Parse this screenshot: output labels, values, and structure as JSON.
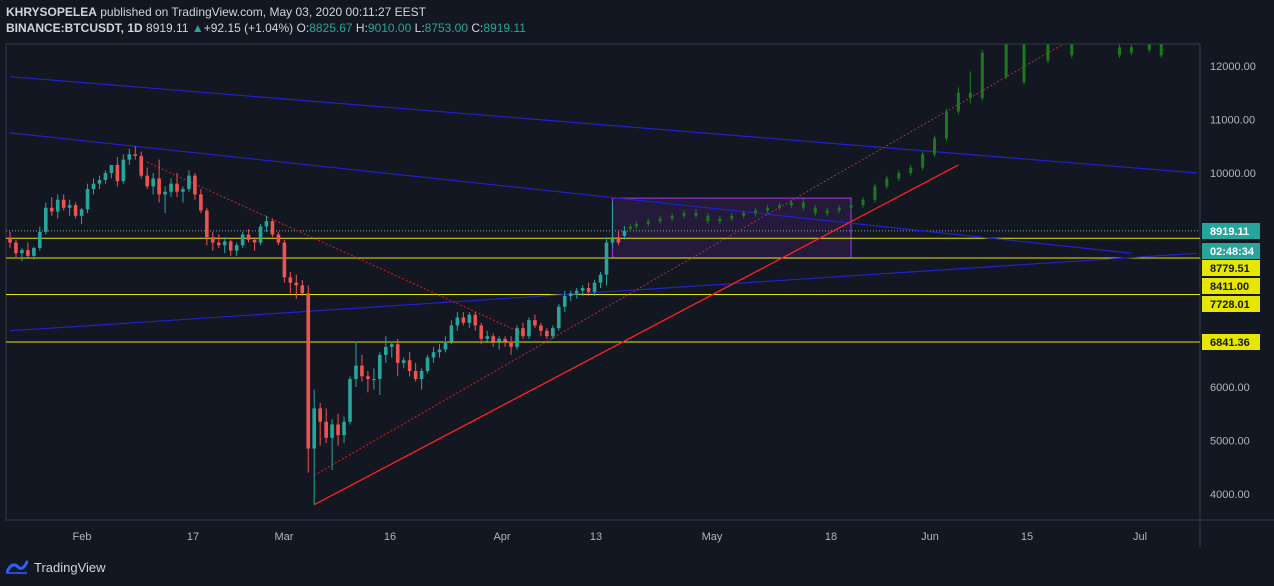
{
  "header": {
    "publisher": "KHRYSOPELEA",
    "published_text": "published on TradingView.com, May 03, 2020 00:11:27 EEST",
    "symbol": "BINANCE:BTCUSDT, 1D",
    "last": "8919.11",
    "change": "+92.15 (+1.04%)",
    "o_label": "O:",
    "o_value": "8825.67",
    "h_label": "H:",
    "h_value": "9010.00",
    "l_label": "L:",
    "l_value": "8753.00",
    "c_label": "C:",
    "c_value": "8919.11"
  },
  "footer": {
    "brand": "TradingView"
  },
  "colors": {
    "background": "#131722",
    "up": "#26a69a",
    "down": "#ef5350",
    "projection": "#1b7a1b",
    "channel": "#2222cc",
    "support_line": "#ff2222",
    "level_line": "#e6e600",
    "box": "#9b30d9"
  },
  "chart_data": {
    "type": "candlestick",
    "x_ticks": [
      "Feb",
      "17",
      "Mar",
      "16",
      "Apr",
      "13",
      "May",
      "18",
      "Jun",
      "15",
      "Jul"
    ],
    "y_ticks": [
      "12000.00",
      "11000.00",
      "10000.00",
      "6000.00",
      "5000.00",
      "4000.00"
    ],
    "ylim": [
      3500,
      12500
    ],
    "price_labels": [
      {
        "text": "8919.11",
        "price": 8919.11,
        "style": "last"
      },
      {
        "text": "02:48:34",
        "price": 8480,
        "style": "countdown"
      },
      {
        "text": "8779.51",
        "price": 8779.51,
        "style": "level"
      },
      {
        "text": "8411.00",
        "price": 8411,
        "style": "level"
      },
      {
        "text": "7728.01",
        "price": 7728.01,
        "style": "level"
      },
      {
        "text": "6841.36",
        "price": 6841.36,
        "style": "level"
      }
    ],
    "candles": [
      {
        "t": 0,
        "o": 8790,
        "h": 8900,
        "l": 8600,
        "c": 8700
      },
      {
        "t": 1,
        "o": 8700,
        "h": 8750,
        "l": 8400,
        "c": 8500
      },
      {
        "t": 2,
        "o": 8500,
        "h": 8600,
        "l": 8350,
        "c": 8560
      },
      {
        "t": 3,
        "o": 8560,
        "h": 8700,
        "l": 8420,
        "c": 8450
      },
      {
        "t": 4,
        "o": 8450,
        "h": 8620,
        "l": 8380,
        "c": 8600
      },
      {
        "t": 5,
        "o": 8600,
        "h": 9000,
        "l": 8550,
        "c": 8900
      },
      {
        "t": 6,
        "o": 8900,
        "h": 9450,
        "l": 8850,
        "c": 9350
      },
      {
        "t": 7,
        "o": 9350,
        "h": 9550,
        "l": 9200,
        "c": 9280
      },
      {
        "t": 8,
        "o": 9280,
        "h": 9600,
        "l": 9150,
        "c": 9500
      },
      {
        "t": 9,
        "o": 9500,
        "h": 9600,
        "l": 9300,
        "c": 9350
      },
      {
        "t": 10,
        "o": 9350,
        "h": 9500,
        "l": 9200,
        "c": 9400
      },
      {
        "t": 11,
        "o": 9400,
        "h": 9450,
        "l": 9150,
        "c": 9200
      },
      {
        "t": 12,
        "o": 9200,
        "h": 9350,
        "l": 9050,
        "c": 9320
      },
      {
        "t": 13,
        "o": 9320,
        "h": 9800,
        "l": 9250,
        "c": 9700
      },
      {
        "t": 14,
        "o": 9700,
        "h": 9900,
        "l": 9600,
        "c": 9800
      },
      {
        "t": 15,
        "o": 9800,
        "h": 9950,
        "l": 9700,
        "c": 9870
      },
      {
        "t": 16,
        "o": 9870,
        "h": 10050,
        "l": 9800,
        "c": 10000
      },
      {
        "t": 17,
        "o": 10000,
        "h": 10150,
        "l": 9900,
        "c": 10150
      },
      {
        "t": 18,
        "o": 10150,
        "h": 10300,
        "l": 9750,
        "c": 9850
      },
      {
        "t": 19,
        "o": 9850,
        "h": 10350,
        "l": 9800,
        "c": 10250
      },
      {
        "t": 20,
        "o": 10250,
        "h": 10450,
        "l": 10150,
        "c": 10350
      },
      {
        "t": 21,
        "o": 10350,
        "h": 10500,
        "l": 10250,
        "c": 10320
      },
      {
        "t": 22,
        "o": 10320,
        "h": 10400,
        "l": 9900,
        "c": 9950
      },
      {
        "t": 23,
        "o": 9950,
        "h": 10100,
        "l": 9700,
        "c": 9750
      },
      {
        "t": 24,
        "o": 9750,
        "h": 10000,
        "l": 9600,
        "c": 9900
      },
      {
        "t": 25,
        "o": 9900,
        "h": 10250,
        "l": 9450,
        "c": 9600
      },
      {
        "t": 26,
        "o": 9600,
        "h": 9750,
        "l": 9250,
        "c": 9650
      },
      {
        "t": 27,
        "o": 9650,
        "h": 9900,
        "l": 9550,
        "c": 9800
      },
      {
        "t": 28,
        "o": 9800,
        "h": 10000,
        "l": 9550,
        "c": 9650
      },
      {
        "t": 29,
        "o": 9650,
        "h": 9750,
        "l": 9450,
        "c": 9700
      },
      {
        "t": 30,
        "o": 9700,
        "h": 10050,
        "l": 9650,
        "c": 9950
      },
      {
        "t": 31,
        "o": 9950,
        "h": 10000,
        "l": 9500,
        "c": 9600
      },
      {
        "t": 32,
        "o": 9600,
        "h": 9700,
        "l": 9250,
        "c": 9300
      },
      {
        "t": 33,
        "o": 9300,
        "h": 9350,
        "l": 8650,
        "c": 8800
      },
      {
        "t": 34,
        "o": 8800,
        "h": 8900,
        "l": 8550,
        "c": 8700
      },
      {
        "t": 35,
        "o": 8700,
        "h": 8850,
        "l": 8600,
        "c": 8650
      },
      {
        "t": 36,
        "o": 8650,
        "h": 8800,
        "l": 8500,
        "c": 8720
      },
      {
        "t": 37,
        "o": 8720,
        "h": 8750,
        "l": 8450,
        "c": 8550
      },
      {
        "t": 38,
        "o": 8550,
        "h": 8700,
        "l": 8450,
        "c": 8650
      },
      {
        "t": 39,
        "o": 8650,
        "h": 8900,
        "l": 8600,
        "c": 8850
      },
      {
        "t": 40,
        "o": 8850,
        "h": 8950,
        "l": 8700,
        "c": 8750
      },
      {
        "t": 41,
        "o": 8750,
        "h": 8800,
        "l": 8550,
        "c": 8700
      },
      {
        "t": 42,
        "o": 8700,
        "h": 9050,
        "l": 8650,
        "c": 9000
      },
      {
        "t": 43,
        "o": 9000,
        "h": 9200,
        "l": 8900,
        "c": 9100
      },
      {
        "t": 44,
        "o": 9100,
        "h": 9150,
        "l": 8800,
        "c": 8850
      },
      {
        "t": 45,
        "o": 8850,
        "h": 8900,
        "l": 8650,
        "c": 8700
      },
      {
        "t": 46,
        "o": 8700,
        "h": 8750,
        "l": 7950,
        "c": 8050
      },
      {
        "t": 47,
        "o": 8050,
        "h": 8150,
        "l": 7750,
        "c": 7950
      },
      {
        "t": 48,
        "o": 7950,
        "h": 8100,
        "l": 7650,
        "c": 7900
      },
      {
        "t": 49,
        "o": 7900,
        "h": 8000,
        "l": 7700,
        "c": 7750
      },
      {
        "t": 50,
        "o": 7750,
        "h": 7900,
        "l": 4400,
        "c": 4850
      },
      {
        "t": 51,
        "o": 4850,
        "h": 5950,
        "l": 3800,
        "c": 5600
      },
      {
        "t": 52,
        "o": 5600,
        "h": 5700,
        "l": 4900,
        "c": 5350
      },
      {
        "t": 53,
        "o": 5350,
        "h": 5600,
        "l": 4950,
        "c": 5050
      },
      {
        "t": 54,
        "o": 5050,
        "h": 5400,
        "l": 4450,
        "c": 5300
      },
      {
        "t": 55,
        "o": 5300,
        "h": 5500,
        "l": 4900,
        "c": 5100
      },
      {
        "t": 56,
        "o": 5100,
        "h": 5450,
        "l": 4950,
        "c": 5350
      },
      {
        "t": 57,
        "o": 5350,
        "h": 6200,
        "l": 5300,
        "c": 6150
      },
      {
        "t": 58,
        "o": 6150,
        "h": 6850,
        "l": 6000,
        "c": 6400
      },
      {
        "t": 59,
        "o": 6400,
        "h": 6600,
        "l": 6100,
        "c": 6200
      },
      {
        "t": 60,
        "o": 6200,
        "h": 6300,
        "l": 5900,
        "c": 6150
      },
      {
        "t": 61,
        "o": 6150,
        "h": 6350,
        "l": 5950,
        "c": 6150
      },
      {
        "t": 62,
        "o": 6150,
        "h": 6650,
        "l": 5850,
        "c": 6600
      },
      {
        "t": 63,
        "o": 6600,
        "h": 6950,
        "l": 6450,
        "c": 6750
      },
      {
        "t": 64,
        "o": 6750,
        "h": 6850,
        "l": 6550,
        "c": 6800
      },
      {
        "t": 65,
        "o": 6800,
        "h": 6900,
        "l": 6200,
        "c": 6450
      },
      {
        "t": 66,
        "o": 6450,
        "h": 6550,
        "l": 6350,
        "c": 6500
      },
      {
        "t": 67,
        "o": 6500,
        "h": 6650,
        "l": 6200,
        "c": 6300
      },
      {
        "t": 68,
        "o": 6300,
        "h": 6450,
        "l": 6100,
        "c": 6150
      },
      {
        "t": 69,
        "o": 6150,
        "h": 6350,
        "l": 5950,
        "c": 6300
      },
      {
        "t": 70,
        "o": 6300,
        "h": 6600,
        "l": 6250,
        "c": 6550
      },
      {
        "t": 71,
        "o": 6550,
        "h": 6750,
        "l": 6450,
        "c": 6650
      },
      {
        "t": 72,
        "o": 6650,
        "h": 6800,
        "l": 6550,
        "c": 6700
      },
      {
        "t": 73,
        "o": 6700,
        "h": 6950,
        "l": 6650,
        "c": 6850
      },
      {
        "t": 74,
        "o": 6850,
        "h": 7250,
        "l": 6800,
        "c": 7150
      },
      {
        "t": 75,
        "o": 7150,
        "h": 7400,
        "l": 7050,
        "c": 7300
      },
      {
        "t": 76,
        "o": 7300,
        "h": 7400,
        "l": 7150,
        "c": 7200
      },
      {
        "t": 77,
        "o": 7200,
        "h": 7400,
        "l": 7100,
        "c": 7350
      },
      {
        "t": 78,
        "o": 7350,
        "h": 7400,
        "l": 7050,
        "c": 7150
      },
      {
        "t": 79,
        "o": 7150,
        "h": 7200,
        "l": 6800,
        "c": 6900
      },
      {
        "t": 80,
        "o": 6900,
        "h": 7050,
        "l": 6850,
        "c": 6950
      },
      {
        "t": 81,
        "o": 6950,
        "h": 7000,
        "l": 6750,
        "c": 6850
      },
      {
        "t": 82,
        "o": 6850,
        "h": 6950,
        "l": 6700,
        "c": 6900
      },
      {
        "t": 83,
        "o": 6900,
        "h": 6950,
        "l": 6750,
        "c": 6850
      },
      {
        "t": 84,
        "o": 6850,
        "h": 6950,
        "l": 6600,
        "c": 6750
      },
      {
        "t": 85,
        "o": 6750,
        "h": 7150,
        "l": 6700,
        "c": 7100
      },
      {
        "t": 86,
        "o": 7100,
        "h": 7200,
        "l": 6900,
        "c": 6950
      },
      {
        "t": 87,
        "o": 6950,
        "h": 7300,
        "l": 6900,
        "c": 7250
      },
      {
        "t": 88,
        "o": 7250,
        "h": 7350,
        "l": 7100,
        "c": 7150
      },
      {
        "t": 89,
        "o": 7150,
        "h": 7200,
        "l": 6950,
        "c": 7050
      },
      {
        "t": 90,
        "o": 7050,
        "h": 7100,
        "l": 6900,
        "c": 6950
      },
      {
        "t": 91,
        "o": 6950,
        "h": 7150,
        "l": 6900,
        "c": 7100
      },
      {
        "t": 92,
        "o": 7100,
        "h": 7550,
        "l": 7050,
        "c": 7500
      },
      {
        "t": 93,
        "o": 7500,
        "h": 7800,
        "l": 7400,
        "c": 7700
      },
      {
        "t": 94,
        "o": 7700,
        "h": 7800,
        "l": 7600,
        "c": 7750
      },
      {
        "t": 95,
        "o": 7750,
        "h": 7850,
        "l": 7650,
        "c": 7800
      },
      {
        "t": 96,
        "o": 7800,
        "h": 7900,
        "l": 7700,
        "c": 7850
      },
      {
        "t": 97,
        "o": 7850,
        "h": 7950,
        "l": 7700,
        "c": 7780
      },
      {
        "t": 98,
        "o": 7780,
        "h": 8000,
        "l": 7700,
        "c": 7950
      },
      {
        "t": 99,
        "o": 7950,
        "h": 8150,
        "l": 7850,
        "c": 8100
      },
      {
        "t": 100,
        "o": 8100,
        "h": 8800,
        "l": 7900,
        "c": 8700
      },
      {
        "t": 101,
        "o": 8700,
        "h": 9450,
        "l": 8600,
        "c": 8800
      },
      {
        "t": 102,
        "o": 8800,
        "h": 8900,
        "l": 8650,
        "c": 8700
      },
      {
        "t": 103,
        "o": 8825.67,
        "h": 9010,
        "l": 8753,
        "c": 8919.11
      }
    ],
    "projection_candles": [
      {
        "t": 104,
        "o": 8950,
        "h": 9050,
        "l": 8900,
        "c": 9000
      },
      {
        "t": 105,
        "o": 9000,
        "h": 9100,
        "l": 8950,
        "c": 9050
      },
      {
        "t": 107,
        "o": 9050,
        "h": 9150,
        "l": 9000,
        "c": 9100
      },
      {
        "t": 109,
        "o": 9100,
        "h": 9200,
        "l": 9050,
        "c": 9150
      },
      {
        "t": 111,
        "o": 9150,
        "h": 9250,
        "l": 9100,
        "c": 9200
      },
      {
        "t": 113,
        "o": 9200,
        "h": 9300,
        "l": 9150,
        "c": 9250
      },
      {
        "t": 115,
        "o": 9250,
        "h": 9330,
        "l": 9150,
        "c": 9200
      },
      {
        "t": 117,
        "o": 9200,
        "h": 9250,
        "l": 9050,
        "c": 9100
      },
      {
        "t": 119,
        "o": 9100,
        "h": 9200,
        "l": 9050,
        "c": 9150
      },
      {
        "t": 121,
        "o": 9150,
        "h": 9250,
        "l": 9100,
        "c": 9200
      },
      {
        "t": 123,
        "o": 9200,
        "h": 9300,
        "l": 9150,
        "c": 9250
      },
      {
        "t": 125,
        "o": 9250,
        "h": 9350,
        "l": 9200,
        "c": 9300
      },
      {
        "t": 127,
        "o": 9300,
        "h": 9400,
        "l": 9250,
        "c": 9350
      },
      {
        "t": 129,
        "o": 9350,
        "h": 9450,
        "l": 9300,
        "c": 9400
      },
      {
        "t": 131,
        "o": 9400,
        "h": 9500,
        "l": 9350,
        "c": 9450
      },
      {
        "t": 133,
        "o": 9450,
        "h": 9550,
        "l": 9300,
        "c": 9350
      },
      {
        "t": 135,
        "o": 9350,
        "h": 9400,
        "l": 9200,
        "c": 9250
      },
      {
        "t": 137,
        "o": 9250,
        "h": 9350,
        "l": 9200,
        "c": 9300
      },
      {
        "t": 139,
        "o": 9300,
        "h": 9400,
        "l": 9250,
        "c": 9350
      },
      {
        "t": 141,
        "o": 9350,
        "h": 9450,
        "l": 9300,
        "c": 9400
      },
      {
        "t": 143,
        "o": 9400,
        "h": 9550,
        "l": 9350,
        "c": 9500
      },
      {
        "t": 145,
        "o": 9500,
        "h": 9800,
        "l": 9450,
        "c": 9750
      },
      {
        "t": 147,
        "o": 9750,
        "h": 9950,
        "l": 9700,
        "c": 9900
      },
      {
        "t": 149,
        "o": 9900,
        "h": 10050,
        "l": 9850,
        "c": 10000
      },
      {
        "t": 151,
        "o": 10000,
        "h": 10150,
        "l": 9950,
        "c": 10100
      },
      {
        "t": 153,
        "o": 10100,
        "h": 10400,
        "l": 10050,
        "c": 10350
      },
      {
        "t": 155,
        "o": 10350,
        "h": 10700,
        "l": 10300,
        "c": 10650
      },
      {
        "t": 157,
        "o": 10650,
        "h": 11200,
        "l": 10600,
        "c": 11150
      },
      {
        "t": 159,
        "o": 11150,
        "h": 11600,
        "l": 11100,
        "c": 11500
      },
      {
        "t": 161,
        "o": 11500,
        "h": 11900,
        "l": 11300,
        "c": 11400
      },
      {
        "t": 163,
        "o": 11400,
        "h": 12300,
        "l": 11350,
        "c": 12250
      },
      {
        "t": 167,
        "o": 11800,
        "h": 12500,
        "l": 11750,
        "c": 12400
      },
      {
        "t": 170,
        "o": 11700,
        "h": 12500,
        "l": 11650,
        "c": 12400
      },
      {
        "t": 174,
        "o": 12100,
        "h": 12450,
        "l": 12050,
        "c": 12400
      },
      {
        "t": 178,
        "o": 12200,
        "h": 12450,
        "l": 12150,
        "c": 12400
      },
      {
        "t": 186,
        "o": 12200,
        "h": 12400,
        "l": 12150,
        "c": 12350
      },
      {
        "t": 188,
        "o": 12250,
        "h": 12400,
        "l": 12200,
        "c": 12350
      },
      {
        "t": 191,
        "o": 12300,
        "h": 12400,
        "l": 12250,
        "c": 12400
      },
      {
        "t": 193,
        "o": 12200,
        "h": 12450,
        "l": 12150,
        "c": 12400
      }
    ],
    "horizontal_levels": [
      8779.51,
      8411.0,
      7728.01,
      6841.36
    ],
    "trendlines": [
      {
        "kind": "channel-upper",
        "from": {
          "t": 0,
          "p": 11800
        },
        "to": {
          "t": 199,
          "p": 10000
        }
      },
      {
        "kind": "channel-mid",
        "from": {
          "t": 0,
          "p": 10750
        },
        "to": {
          "t": 188,
          "p": 8500
        }
      },
      {
        "kind": "channel-lower",
        "from": {
          "t": 0,
          "p": 7050
        },
        "to": {
          "t": 199,
          "p": 8500
        }
      },
      {
        "kind": "support",
        "from": {
          "t": 51,
          "p": 3800
        },
        "to": {
          "t": 159,
          "p": 10150
        }
      },
      {
        "kind": "dotted-support",
        "from": {
          "t": 51,
          "p": 4350
        },
        "to": {
          "t": 178,
          "p": 12500
        }
      },
      {
        "kind": "dotted-resistance",
        "from": {
          "t": 23,
          "p": 10200
        },
        "to": {
          "t": 86,
          "p": 7000
        }
      }
    ],
    "box": {
      "t1": 101,
      "t2": 141,
      "p1": 8411,
      "p2": 9530
    }
  }
}
